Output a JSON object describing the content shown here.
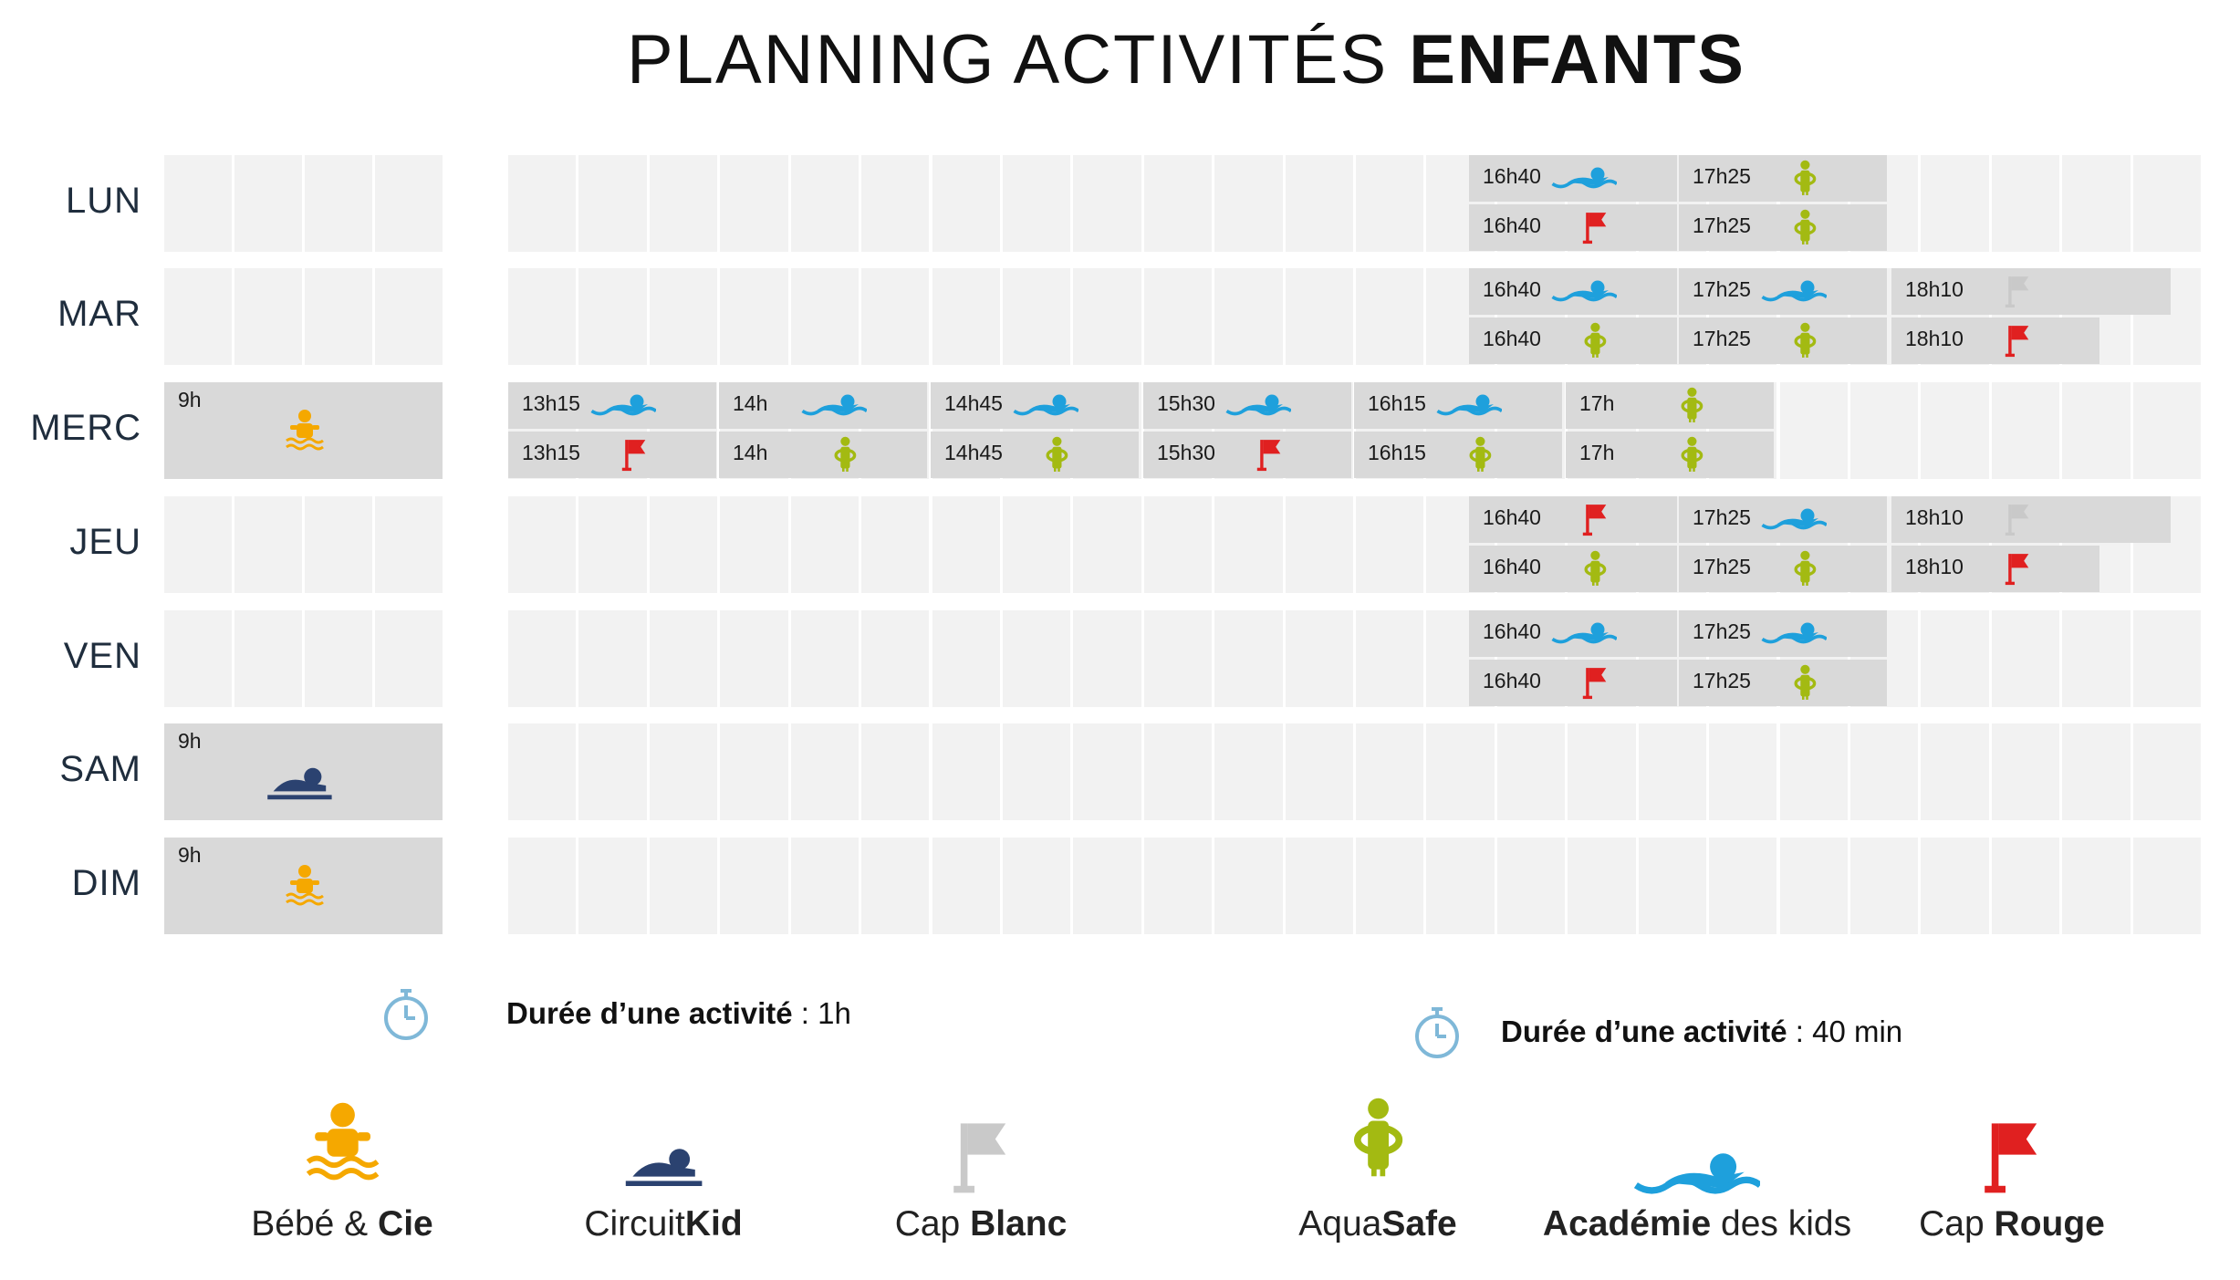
{
  "title": {
    "light": "PLANNING ACTIVITÉS",
    "bold": "ENFANTS"
  },
  "days": [
    "LUN",
    "MAR",
    "MERC",
    "JEU",
    "VEN",
    "SAM",
    "DIM"
  ],
  "colors": {
    "grid_bg": "#f2f2f2",
    "block_bg": "#d9d9d9",
    "bebe": "#f5a800",
    "circuit": "#2b4270",
    "capblanc": "#c9c9c9",
    "aquasafe": "#a3ba12",
    "academie": "#1ea0dc",
    "caprouge": "#e02020"
  },
  "activities": {
    "bebe": {
      "name_light": "Bébé & ",
      "name_bold": "Cie",
      "icon": "bebe-icon"
    },
    "circuit": {
      "name_light": "Circuit",
      "name_bold": "Kid",
      "icon": "circuit-icon"
    },
    "capblanc": {
      "name_light": "Cap ",
      "name_bold": "Blanc",
      "icon": "white-flag-icon"
    },
    "aquasafe": {
      "name_light": "Aqua",
      "name_bold": "Safe",
      "icon": "aquasafe-icon"
    },
    "academie": {
      "name_bold": "Académie",
      "name_light": " des kids",
      "icon": "swimmer-icon"
    },
    "caprouge": {
      "name_light": "Cap ",
      "name_bold": "Rouge",
      "icon": "red-flag-icon"
    }
  },
  "durations": {
    "left": {
      "bold": "Durée d’une activité",
      "rest": " : 1h"
    },
    "right": {
      "bold": "Durée d’une activité",
      "rest": " : 40 min"
    }
  },
  "schedule": {
    "LUN": [
      [
        "16h40",
        "academie"
      ],
      [
        "17h25",
        "aquasafe"
      ],
      [
        "16h40",
        "caprouge"
      ],
      [
        "17h25",
        "aquasafe"
      ]
    ],
    "MAR": [
      [
        "16h40",
        "academie"
      ],
      [
        "17h25",
        "academie"
      ],
      [
        "18h10",
        "capblanc"
      ],
      [
        "16h40",
        "aquasafe"
      ],
      [
        "17h25",
        "aquasafe"
      ],
      [
        "18h10",
        "caprouge"
      ]
    ],
    "MERC": [
      [
        "9h",
        "bebe"
      ],
      [
        "13h15",
        "academie"
      ],
      [
        "14h",
        "academie"
      ],
      [
        "14h45",
        "academie"
      ],
      [
        "15h30",
        "academie"
      ],
      [
        "16h15",
        "academie"
      ],
      [
        "17h",
        "aquasafe"
      ],
      [
        "13h15",
        "caprouge"
      ],
      [
        "14h",
        "aquasafe"
      ],
      [
        "14h45",
        "aquasafe"
      ],
      [
        "15h30",
        "caprouge"
      ],
      [
        "16h15",
        "aquasafe"
      ],
      [
        "17h",
        "aquasafe"
      ]
    ],
    "JEU": [
      [
        "16h40",
        "caprouge"
      ],
      [
        "17h25",
        "academie"
      ],
      [
        "18h10",
        "capblanc"
      ],
      [
        "16h40",
        "aquasafe"
      ],
      [
        "17h25",
        "aquasafe"
      ],
      [
        "18h10",
        "caprouge"
      ]
    ],
    "VEN": [
      [
        "16h40",
        "academie"
      ],
      [
        "17h25",
        "academie"
      ],
      [
        "16h40",
        "caprouge"
      ],
      [
        "17h25",
        "aquasafe"
      ]
    ],
    "SAM": [
      [
        "9h",
        "circuit"
      ]
    ],
    "DIM": [
      [
        "9h",
        "bebe"
      ]
    ]
  }
}
